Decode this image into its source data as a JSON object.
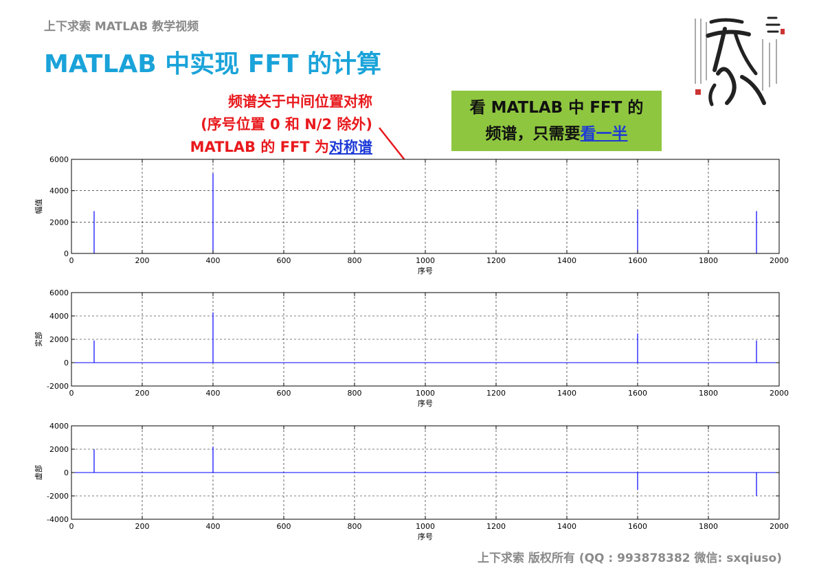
{
  "header": {
    "course": "上下求索 MATLAB 教学视频"
  },
  "slide": {
    "title": "MATLAB 中实现 FFT 的计算"
  },
  "annotation_red": {
    "line1": "频谱关于中间位置对称",
    "line2": "(序号位置 0 和 N/2 除外)",
    "line3_prefix": "MATLAB 的 FFT 为",
    "line3_link": "对称谱"
  },
  "annotation_green": {
    "line1": "看 MATLAB 中 FFT 的",
    "line2_prefix": "频谱，只需要",
    "line2_link": "看一半"
  },
  "footer": {
    "copyright": "上下求索  版权所有  (QQ : 993878382   微信: sxqiuso)"
  },
  "colors": {
    "title": "#1aa3d9",
    "red_note": "#e8191d",
    "link": "#1d3ad6",
    "green_box": "#8ec63f",
    "series": "#0000ff"
  },
  "chart_data": [
    {
      "type": "line",
      "xlabel": "序号",
      "ylabel": "幅值",
      "xlim": [
        0,
        2000
      ],
      "ylim": [
        0,
        6000
      ],
      "xticks": [
        0,
        200,
        400,
        600,
        800,
        1000,
        1200,
        1400,
        1600,
        1800,
        2000
      ],
      "yticks": [
        0,
        2000,
        4000,
        6000
      ],
      "grid": true,
      "series": [
        {
          "x": [
            64,
            400,
            1600,
            1936
          ],
          "y": [
            2700,
            5100,
            2800,
            2700
          ]
        }
      ]
    },
    {
      "type": "line",
      "xlabel": "序号",
      "ylabel": "实部",
      "xlim": [
        0,
        2000
      ],
      "ylim": [
        -2000,
        6000
      ],
      "xticks": [
        0,
        200,
        400,
        600,
        800,
        1000,
        1200,
        1400,
        1600,
        1800,
        2000
      ],
      "yticks": [
        -2000,
        0,
        2000,
        4000,
        6000
      ],
      "grid": true,
      "series": [
        {
          "x": [
            64,
            400,
            1600,
            1936
          ],
          "y": [
            1900,
            4300,
            2500,
            1900
          ]
        }
      ]
    },
    {
      "type": "line",
      "xlabel": "序号",
      "ylabel": "虚部",
      "xlim": [
        0,
        2000
      ],
      "ylim": [
        -4000,
        4000
      ],
      "xticks": [
        0,
        200,
        400,
        600,
        800,
        1000,
        1200,
        1400,
        1600,
        1800,
        2000
      ],
      "yticks": [
        -4000,
        -2000,
        0,
        2000,
        4000
      ],
      "grid": true,
      "series": [
        {
          "x": [
            64,
            400,
            1600,
            1936
          ],
          "y": [
            2000,
            2200,
            -1500,
            -2000
          ]
        }
      ]
    }
  ]
}
